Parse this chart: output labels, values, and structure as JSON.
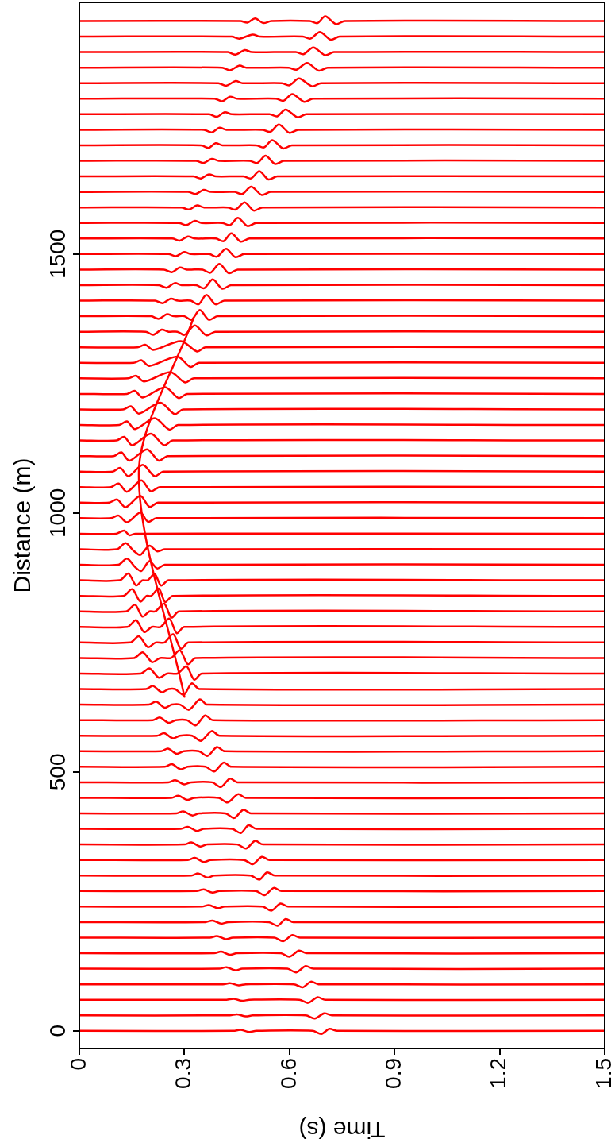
{
  "chart_data": {
    "type": "line",
    "xlabel": "Time (s)",
    "ylabel": "Distance (m)",
    "color": "#ff0000",
    "xlim": [
      0,
      1.5
    ],
    "xticks": [
      0,
      0.3,
      0.6,
      0.9,
      1.2,
      1.5
    ],
    "ylim": [
      -34,
      1986
    ],
    "yticks": [
      0,
      500,
      1000,
      1500
    ],
    "series": [
      {
        "x": [
          0,
          0.44,
          0.46,
          0.485,
          0.505,
          0.666,
          0.691,
          0.714,
          0.736,
          1.5
        ],
        "values": [
          0,
          0,
          2,
          -2,
          0,
          0,
          -6,
          4,
          0,
          0
        ]
      },
      {
        "x": [
          0,
          0.43,
          0.45,
          0.475,
          0.495,
          0.647,
          0.672,
          0.699,
          0.721,
          1.5
        ],
        "values": [
          30,
          30,
          32,
          28,
          30,
          30,
          24,
          34,
          30,
          30
        ]
      },
      {
        "x": [
          0,
          0.42,
          0.44,
          0.465,
          0.485,
          0.628,
          0.653,
          0.68,
          0.702,
          1.5
        ],
        "values": [
          60,
          60,
          62,
          58,
          60,
          60,
          54,
          65,
          60,
          60
        ]
      },
      {
        "x": [
          0,
          0.41,
          0.43,
          0.455,
          0.475,
          0.613,
          0.638,
          0.661,
          0.683,
          1.5
        ],
        "values": [
          90,
          90,
          92,
          88,
          90,
          90,
          84,
          95,
          90,
          90
        ]
      },
      {
        "x": [
          0,
          0.4,
          0.42,
          0.445,
          0.465,
          0.594,
          0.619,
          0.646,
          0.668,
          1.5
        ],
        "values": [
          120,
          120,
          123,
          117,
          120,
          120,
          113,
          125,
          120,
          120
        ]
      },
      {
        "x": [
          0,
          0.385,
          0.405,
          0.43,
          0.45,
          0.575,
          0.6,
          0.627,
          0.649,
          1.5
        ],
        "values": [
          150,
          150,
          153,
          147,
          150,
          150,
          143,
          155,
          150,
          150
        ]
      },
      {
        "x": [
          0,
          0.373,
          0.393,
          0.418,
          0.438,
          0.557,
          0.582,
          0.608,
          0.63,
          1.5
        ],
        "values": [
          180,
          180,
          183,
          177,
          180,
          180,
          173,
          185,
          180,
          180
        ]
      },
      {
        "x": [
          0,
          0.36,
          0.38,
          0.405,
          0.425,
          0.541,
          0.566,
          0.589,
          0.611,
          1.5
        ],
        "values": [
          210,
          210,
          213,
          207,
          210,
          210,
          203,
          216,
          210,
          210
        ]
      },
      {
        "x": [
          0,
          0.35,
          0.37,
          0.395,
          0.415,
          0.523,
          0.548,
          0.574,
          0.596,
          1.5
        ],
        "values": [
          240,
          240,
          243,
          237,
          240,
          240,
          232,
          246,
          240,
          240
        ]
      },
      {
        "x": [
          0,
          0.335,
          0.355,
          0.38,
          0.4,
          0.504,
          0.529,
          0.555,
          0.577,
          1.5
        ],
        "values": [
          270,
          270,
          273,
          267,
          270,
          270,
          262,
          276,
          270,
          270
        ]
      },
      {
        "x": [
          0,
          0.32,
          0.34,
          0.365,
          0.385,
          0.489,
          0.514,
          0.536,
          0.558,
          1.5
        ],
        "values": [
          300,
          300,
          304,
          296,
          300,
          300,
          292,
          306,
          300,
          300
        ]
      },
      {
        "x": [
          0,
          0.31,
          0.33,
          0.355,
          0.375,
          0.47,
          0.495,
          0.521,
          0.543,
          1.5
        ],
        "values": [
          330,
          330,
          334,
          326,
          330,
          330,
          322,
          336,
          330,
          330
        ]
      },
      {
        "x": [
          0,
          0.3,
          0.32,
          0.345,
          0.365,
          0.451,
          0.476,
          0.502,
          0.524,
          1.5
        ],
        "values": [
          360,
          360,
          364,
          356,
          360,
          360,
          352,
          367,
          360,
          360
        ]
      },
      {
        "x": [
          0,
          0.29,
          0.31,
          0.335,
          0.355,
          0.436,
          0.461,
          0.483,
          0.505,
          1.5
        ],
        "values": [
          390,
          390,
          394,
          386,
          390,
          390,
          382,
          397,
          390,
          390
        ]
      },
      {
        "x": [
          0,
          0.277,
          0.297,
          0.322,
          0.342,
          0.417,
          0.442,
          0.468,
          0.49,
          1.5
        ],
        "values": [
          420,
          420,
          424,
          416,
          420,
          420,
          411,
          427,
          420,
          420
        ]
      },
      {
        "x": [
          0,
          0.263,
          0.283,
          0.308,
          0.328,
          0.398,
          0.423,
          0.453,
          0.475,
          1.5
        ],
        "values": [
          450,
          450,
          454,
          446,
          450,
          450,
          441,
          457,
          450,
          450
        ]
      },
      {
        "x": [
          0,
          0.254,
          0.274,
          0.299,
          0.319,
          0.379,
          0.404,
          0.43,
          0.452,
          1.5
        ],
        "values": [
          480,
          480,
          484,
          476,
          480,
          480,
          471,
          487,
          480,
          480
        ]
      },
      {
        "x": [
          0,
          0.244,
          0.264,
          0.289,
          0.309,
          0.36,
          0.385,
          0.412,
          0.434,
          1.5
        ],
        "values": [
          510,
          510,
          515,
          505,
          510,
          510,
          501,
          518,
          510,
          510
        ]
      },
      {
        "x": [
          0,
          0.233,
          0.253,
          0.278,
          0.298,
          0.341,
          0.366,
          0.393,
          0.415,
          1.5
        ],
        "values": [
          540,
          540,
          545,
          535,
          540,
          540,
          531,
          548,
          540,
          540
        ]
      },
      {
        "x": [
          0,
          0.222,
          0.242,
          0.267,
          0.287,
          0.322,
          0.347,
          0.378,
          0.4,
          1.5
        ],
        "values": [
          570,
          570,
          575,
          565,
          570,
          570,
          560,
          579,
          570,
          570
        ]
      },
      {
        "x": [
          0,
          0.21,
          0.23,
          0.255,
          0.275,
          0.307,
          0.332,
          0.359,
          0.381,
          1.5
        ],
        "values": [
          600,
          600,
          605,
          595,
          600,
          600,
          590,
          609,
          600,
          600
        ]
      },
      {
        "x": [
          0,
          0.199,
          0.219,
          0.244,
          0.264,
          0.288,
          0.313,
          0.344,
          0.366,
          1.5
        ],
        "values": [
          630,
          630,
          636,
          624,
          630,
          630,
          620,
          640,
          630,
          630
        ]
      },
      {
        "x": [
          0,
          0.19,
          0.21,
          0.235,
          0.255,
          0.273,
          0.298,
          0.321,
          0.343,
          1.5
        ],
        "values": [
          660,
          660,
          666,
          654,
          660,
          660,
          649,
          671,
          660,
          660
        ]
      },
      {
        "x": [
          0,
          0.175,
          0.2,
          0.227,
          0.25,
          0.28,
          0.306,
          0.328,
          0.35,
          1.5
        ],
        "values": [
          690,
          690,
          700,
          682,
          690,
          690,
          704,
          678,
          690,
          690
        ]
      },
      {
        "x": [
          0,
          0.156,
          0.181,
          0.208,
          0.23,
          0.262,
          0.287,
          0.31,
          0.332,
          1.5
        ],
        "values": [
          720,
          720,
          731,
          712,
          720,
          720,
          735,
          708,
          720,
          720
        ]
      },
      {
        "x": [
          0,
          0.145,
          0.17,
          0.196,
          0.218,
          0.243,
          0.268,
          0.29,
          0.312,
          1.5
        ],
        "values": [
          750,
          750,
          762,
          741,
          750,
          750,
          766,
          738,
          750,
          750
        ]
      },
      {
        "x": [
          0,
          0.137,
          0.162,
          0.185,
          0.207,
          0.232,
          0.257,
          0.278,
          0.3,
          1.5
        ],
        "values": [
          780,
          780,
          793,
          770,
          780,
          780,
          796,
          768,
          780,
          780
        ]
      },
      {
        "x": [
          0,
          0.134,
          0.159,
          0.18,
          0.2,
          0.217,
          0.242,
          0.263,
          0.285,
          1.5
        ],
        "values": [
          810,
          810,
          823,
          800,
          810,
          810,
          825,
          798,
          810,
          810
        ]
      },
      {
        "x": [
          0,
          0.126,
          0.151,
          0.174,
          0.192,
          0.205,
          0.227,
          0.245,
          0.267,
          1.5
        ],
        "values": [
          840,
          840,
          853,
          829,
          840,
          840,
          854,
          828,
          840,
          840
        ]
      },
      {
        "x": [
          0,
          0.115,
          0.14,
          0.162,
          0.18,
          0.195,
          0.215,
          0.233,
          0.255,
          1.5
        ],
        "values": [
          870,
          870,
          883,
          860,
          870,
          870,
          882,
          860,
          870,
          870
        ]
      },
      {
        "x": [
          0,
          0.111,
          0.136,
          0.16,
          0.177,
          0.2,
          0.222,
          0.244,
          1.5
        ],
        "values": [
          900,
          900,
          912,
          895,
          888,
          907,
          893,
          900,
          900
        ]
      },
      {
        "x": [
          0,
          0.107,
          0.132,
          0.155,
          0.174,
          0.2,
          0.222,
          0.244,
          1.5
        ],
        "values": [
          930,
          930,
          942,
          927,
          919,
          937,
          926,
          930,
          930
        ]
      },
      {
        "x": [
          0,
          0.105,
          0.128,
          0.143,
          0.16,
          1.5
        ],
        "values": [
          960,
          960,
          966,
          957,
          960,
          960
        ]
      },
      {
        "x": [
          0,
          0.09,
          0.112,
          0.136,
          0.174,
          0.196,
          0.22,
          1.5
        ],
        "values": [
          990,
          990,
          995,
          982,
          1001,
          983,
          990,
          990
        ]
      },
      {
        "x": [
          0,
          0.085,
          0.108,
          0.132,
          0.174,
          0.2,
          0.225,
          1.5
        ],
        "values": [
          1020,
          1020,
          1026,
          1011,
          1033,
          1012,
          1020,
          1020
        ]
      },
      {
        "x": [
          0,
          0.09,
          0.112,
          0.136,
          0.177,
          0.204,
          0.23,
          1.5
        ],
        "values": [
          1050,
          1050,
          1057,
          1041,
          1063,
          1042,
          1050,
          1050
        ]
      },
      {
        "x": [
          0,
          0.095,
          0.117,
          0.14,
          0.181,
          0.215,
          0.24,
          1.5
        ],
        "values": [
          1080,
          1080,
          1087,
          1071,
          1093,
          1071,
          1080,
          1080
        ]
      },
      {
        "x": [
          0,
          0.098,
          0.12,
          0.143,
          0.193,
          0.227,
          0.252,
          1.5
        ],
        "values": [
          1110,
          1110,
          1117,
          1101,
          1123,
          1101,
          1110,
          1110
        ]
      },
      {
        "x": [
          0,
          0.106,
          0.128,
          0.151,
          0.204,
          0.242,
          0.267,
          1.5
        ],
        "values": [
          1140,
          1140,
          1147,
          1131,
          1153,
          1131,
          1140,
          1140
        ]
      },
      {
        "x": [
          0,
          0.114,
          0.136,
          0.159,
          0.215,
          0.257,
          0.282,
          1.5
        ],
        "values": [
          1170,
          1170,
          1177,
          1162,
          1183,
          1161,
          1170,
          1170
        ]
      },
      {
        "x": [
          0,
          0.125,
          0.147,
          0.17,
          0.231,
          0.272,
          0.297,
          1.5
        ],
        "values": [
          1200,
          1200,
          1206,
          1192,
          1213,
          1191,
          1200,
          1200
        ]
      },
      {
        "x": [
          0,
          0.136,
          0.158,
          0.181,
          0.245,
          0.283,
          0.308,
          1.5
        ],
        "values": [
          1230,
          1230,
          1236,
          1223,
          1243,
          1222,
          1230,
          1230
        ]
      },
      {
        "x": [
          0,
          0.14,
          0.162,
          0.185,
          0.26,
          0.302,
          0.327,
          1.5
        ],
        "values": [
          1260,
          1260,
          1265,
          1254,
          1272,
          1252,
          1260,
          1260
        ]
      },
      {
        "x": [
          0,
          0.155,
          0.177,
          0.2,
          0.28,
          0.317,
          0.342,
          1.5
        ],
        "values": [
          1290,
          1290,
          1295,
          1284,
          1302,
          1282,
          1290,
          1290
        ]
      },
      {
        "x": [
          0,
          0.166,
          0.188,
          0.211,
          0.29,
          0.336,
          0.36,
          1.5
        ],
        "values": [
          1320,
          1320,
          1325,
          1315,
          1332,
          1312,
          1320,
          1320
        ]
      },
      {
        "x": [
          0,
          0.19,
          0.211,
          0.235,
          0.255,
          0.28,
          0.3,
          0.33,
          0.363,
          0.388,
          1.5
        ],
        "values": [
          1350,
          1350,
          1344,
          1354,
          1350,
          1350,
          1344,
          1362,
          1343,
          1350,
          1350
        ]
      },
      {
        "x": [
          0,
          0.205,
          0.227,
          0.25,
          0.27,
          0.3,
          0.32,
          0.344,
          0.37,
          0.395,
          1.5
        ],
        "values": [
          1380,
          1380,
          1375,
          1384,
          1380,
          1380,
          1373,
          1392,
          1373,
          1380,
          1380
        ]
      },
      {
        "x": [
          0,
          0.216,
          0.238,
          0.261,
          0.281,
          0.318,
          0.34,
          0.363,
          0.389,
          0.414,
          1.5
        ],
        "values": [
          1410,
          1410,
          1405,
          1414,
          1410,
          1410,
          1403,
          1421,
          1403,
          1410,
          1410
        ]
      },
      {
        "x": [
          0,
          0.227,
          0.249,
          0.272,
          0.292,
          0.334,
          0.356,
          0.381,
          0.408,
          0.433,
          1.5
        ],
        "values": [
          1440,
          1440,
          1435,
          1444,
          1440,
          1440,
          1434,
          1451,
          1433,
          1440,
          1440
        ]
      },
      {
        "x": [
          0,
          0.242,
          0.264,
          0.287,
          0.307,
          0.352,
          0.374,
          0.4,
          0.427,
          0.452,
          1.5
        ],
        "values": [
          1470,
          1470,
          1465,
          1474,
          1470,
          1470,
          1464,
          1481,
          1463,
          1470,
          1470
        ]
      },
      {
        "x": [
          0,
          0.254,
          0.276,
          0.299,
          0.319,
          0.371,
          0.393,
          0.419,
          0.446,
          0.471,
          1.5
        ],
        "values": [
          1500,
          1500,
          1496,
          1504,
          1500,
          1500,
          1495,
          1510,
          1494,
          1500,
          1500
        ]
      },
      {
        "x": [
          0,
          0.265,
          0.287,
          0.31,
          0.33,
          0.39,
          0.412,
          0.434,
          0.461,
          0.486,
          1.5
        ],
        "values": [
          1530,
          1530,
          1526,
          1534,
          1530,
          1530,
          1525,
          1540,
          1524,
          1530,
          1530
        ]
      },
      {
        "x": [
          0,
          0.284,
          0.306,
          0.329,
          0.349,
          0.408,
          0.43,
          0.453,
          0.48,
          0.505,
          1.5
        ],
        "values": [
          1560,
          1560,
          1556,
          1564,
          1560,
          1560,
          1556,
          1570,
          1554,
          1560,
          1560
        ]
      },
      {
        "x": [
          0,
          0.291,
          0.313,
          0.336,
          0.356,
          0.424,
          0.446,
          0.472,
          0.498,
          0.523,
          1.5
        ],
        "values": [
          1590,
          1590,
          1586,
          1594,
          1590,
          1590,
          1586,
          1600,
          1584,
          1590,
          1590
        ]
      },
      {
        "x": [
          0,
          0.31,
          0.332,
          0.355,
          0.375,
          0.443,
          0.465,
          0.491,
          0.521,
          0.546,
          1.5
        ],
        "values": [
          1620,
          1620,
          1616,
          1624,
          1620,
          1620,
          1616,
          1630,
          1614,
          1620,
          1620
        ]
      },
      {
        "x": [
          0,
          0.325,
          0.347,
          0.37,
          0.39,
          0.468,
          0.49,
          0.514,
          0.54,
          0.565,
          1.5
        ],
        "values": [
          1650,
          1650,
          1646,
          1654,
          1650,
          1650,
          1646,
          1660,
          1644,
          1650,
          1650
        ]
      },
      {
        "x": [
          0,
          0.333,
          0.355,
          0.378,
          0.398,
          0.486,
          0.508,
          0.532,
          0.559,
          0.584,
          1.5
        ],
        "values": [
          1680,
          1680,
          1676,
          1684,
          1680,
          1680,
          1676,
          1690,
          1674,
          1680,
          1680
        ]
      },
      {
        "x": [
          0,
          0.347,
          0.369,
          0.389,
          0.409,
          0.505,
          0.527,
          0.551,
          0.582,
          0.607,
          1.5
        ],
        "values": [
          1710,
          1710,
          1705,
          1714,
          1710,
          1710,
          1706,
          1720,
          1704,
          1710,
          1710
        ]
      },
      {
        "x": [
          0,
          0.356,
          0.378,
          0.4,
          0.42,
          0.523,
          0.545,
          0.57,
          0.6,
          0.625,
          1.5
        ],
        "values": [
          1740,
          1740,
          1735,
          1744,
          1740,
          1740,
          1736,
          1750,
          1734,
          1740,
          1740
        ]
      },
      {
        "x": [
          0,
          0.371,
          0.393,
          0.415,
          0.435,
          0.543,
          0.565,
          0.589,
          0.623,
          0.648,
          1.5
        ],
        "values": [
          1770,
          1770,
          1765,
          1774,
          1770,
          1770,
          1766,
          1779,
          1764,
          1770,
          1770
        ]
      },
      {
        "x": [
          0,
          0.386,
          0.408,
          0.43,
          0.45,
          0.561,
          0.583,
          0.608,
          0.642,
          0.667,
          1.5
        ],
        "values": [
          1800,
          1800,
          1795,
          1804,
          1800,
          1800,
          1796,
          1809,
          1794,
          1800,
          1800
        ]
      },
      {
        "x": [
          0,
          0.397,
          0.419,
          0.446,
          0.466,
          0.578,
          0.6,
          0.627,
          0.665,
          0.69,
          1.5
        ],
        "values": [
          1830,
          1830,
          1825,
          1834,
          1830,
          1830,
          1826,
          1839,
          1824,
          1830,
          1830
        ]
      },
      {
        "x": [
          0,
          0.408,
          0.43,
          0.457,
          0.477,
          0.598,
          0.62,
          0.65,
          0.684,
          0.709,
          1.5
        ],
        "values": [
          1860,
          1860,
          1855,
          1864,
          1860,
          1860,
          1856,
          1869,
          1854,
          1860,
          1860
        ]
      },
      {
        "x": [
          0,
          0.424,
          0.446,
          0.472,
          0.492,
          0.618,
          0.64,
          0.668,
          0.702,
          0.727,
          1.5
        ],
        "values": [
          1890,
          1890,
          1885,
          1894,
          1890,
          1890,
          1886,
          1899,
          1884,
          1890,
          1890
        ]
      },
      {
        "x": [
          0,
          0.435,
          0.457,
          0.495,
          0.515,
          0.638,
          0.66,
          0.687,
          0.718,
          0.743,
          1.5
        ],
        "values": [
          1920,
          1920,
          1916,
          1924,
          1920,
          1920,
          1916,
          1929,
          1914,
          1920,
          1920
        ]
      },
      {
        "x": [
          0,
          0.46,
          0.48,
          0.502,
          0.525,
          0.548,
          0.658,
          0.68,
          0.702,
          0.733,
          0.758,
          1.5
        ],
        "values": [
          1950,
          1950,
          1947,
          1955,
          1946,
          1950,
          1950,
          1946,
          1959,
          1944,
          1950,
          1950
        ]
      },
      {
        "x": [
          0.3,
          0.17,
          0.324
        ],
        "values": [
          645,
          1081,
          1373
        ]
      }
    ]
  }
}
